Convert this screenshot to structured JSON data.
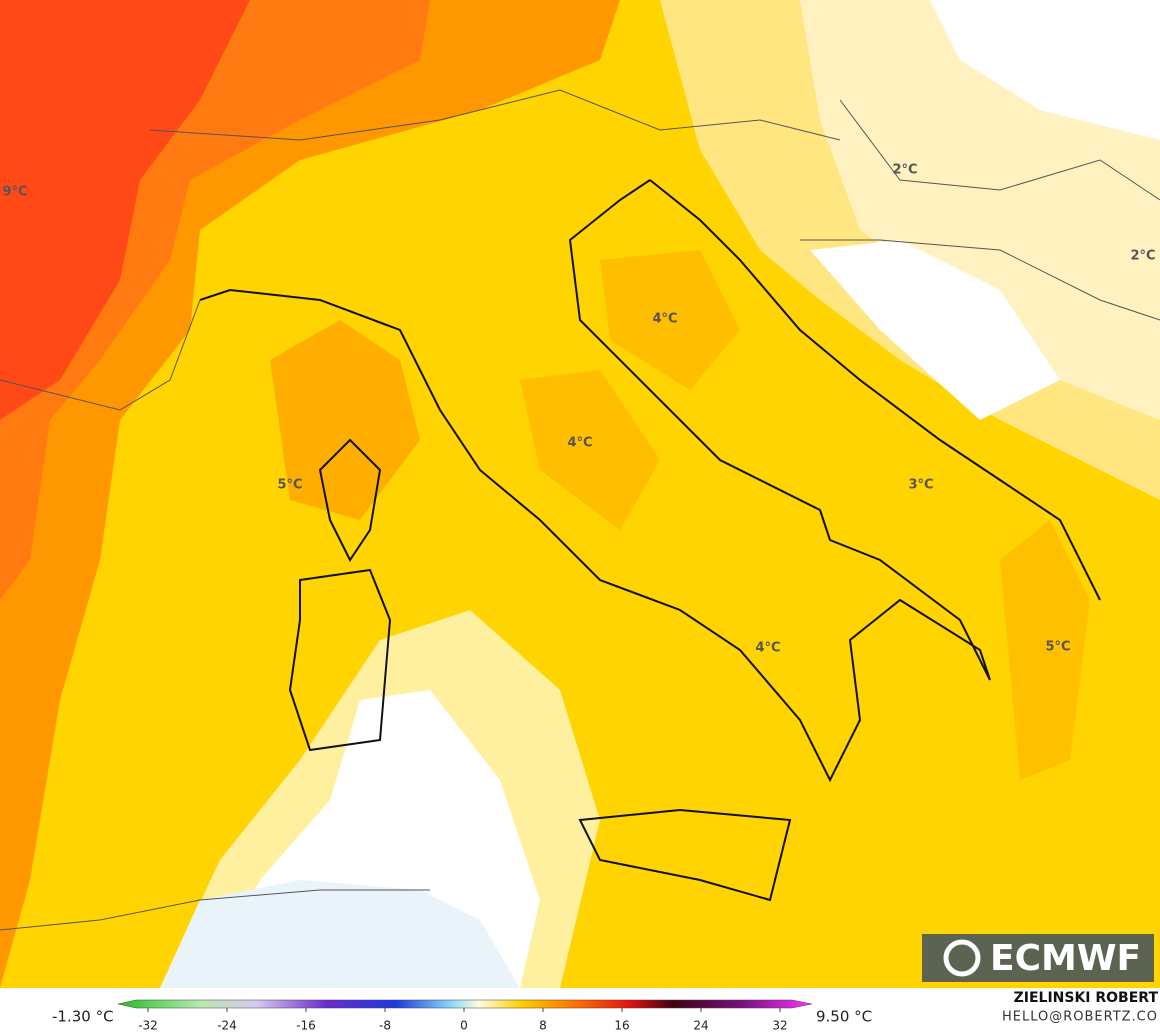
{
  "map": {
    "labels": [
      "9°C",
      "2°C",
      "2°C",
      "4°C",
      "4°C",
      "5°C",
      "3°C",
      "4°C",
      "5°C"
    ],
    "colorbar": {
      "min_label": "-1.30 °C",
      "max_label": "9.50 °C",
      "range": [
        -32,
        32
      ],
      "ticks": [
        -32,
        -24,
        -16,
        -8,
        0,
        8,
        16,
        24,
        32
      ]
    },
    "logo": "ECMWF",
    "credit": "ZIELINSKI ROBERT",
    "contact": "HELLO@ROBERTZ.CO"
  }
}
